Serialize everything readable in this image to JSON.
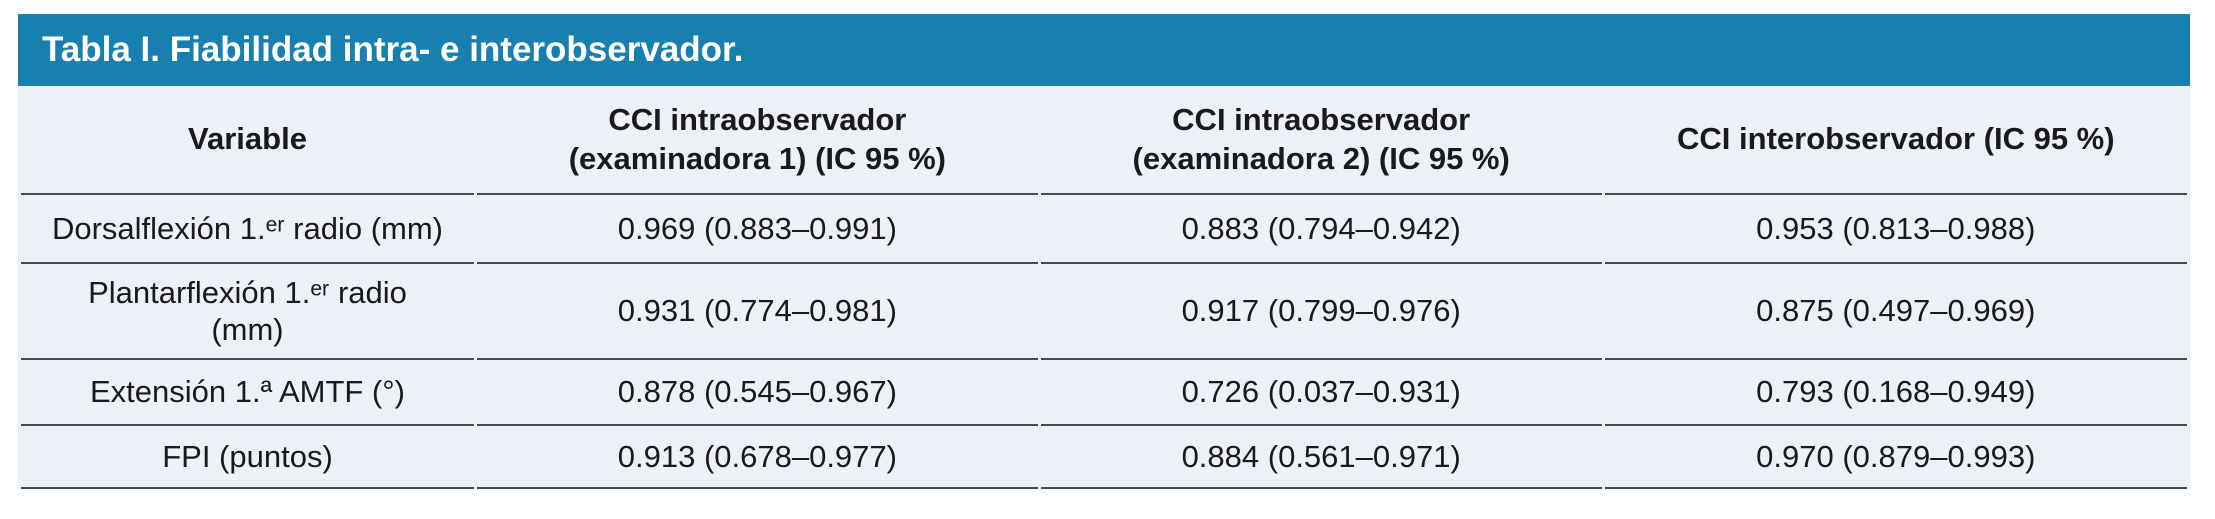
{
  "table": {
    "title": "Tabla I. Fiabilidad intra- e interobservador.",
    "columns": [
      {
        "label": "Variable"
      },
      {
        "label": "CCI intraobservador\n(examinadora 1) (IC 95 %)"
      },
      {
        "label": "CCI intraobservador\n(examinadora 2) (IC 95 %)"
      },
      {
        "label": "CCI interobservador (IC 95 %)"
      }
    ],
    "rows": [
      {
        "variable": "Dorsalflexión 1.ᵉʳ radio (mm)",
        "cci_intra_1": "0.969 (0.883–0.991)",
        "cci_intra_2": "0.883 (0.794–0.942)",
        "cci_inter": "0.953 (0.813–0.988)"
      },
      {
        "variable": "Plantarflexión 1.ᵉʳ radio\n(mm)",
        "cci_intra_1": "0.931 (0.774–0.981)",
        "cci_intra_2": "0.917 (0.799–0.976)",
        "cci_inter": "0.875 (0.497–0.969)"
      },
      {
        "variable": "Extensión 1.ª AMTF (°)",
        "cci_intra_1": "0.878 (0.545–0.967)",
        "cci_intra_2": "0.726 (0.037–0.931)",
        "cci_inter": "0.793 (0.168–0.949)"
      },
      {
        "variable": "FPI (puntos)",
        "cci_intra_1": "0.913 (0.678–0.977)",
        "cci_intra_2": "0.884 (0.561–0.971)",
        "cci_inter": "0.970 (0.879–0.993)"
      }
    ],
    "colors": {
      "title_bar_bg": "#1880AF",
      "title_text": "#FFFFFF",
      "body_bg": "#EDF0F7",
      "divider": "#4A4A4A",
      "cell_text": "#1A1A1A"
    }
  }
}
